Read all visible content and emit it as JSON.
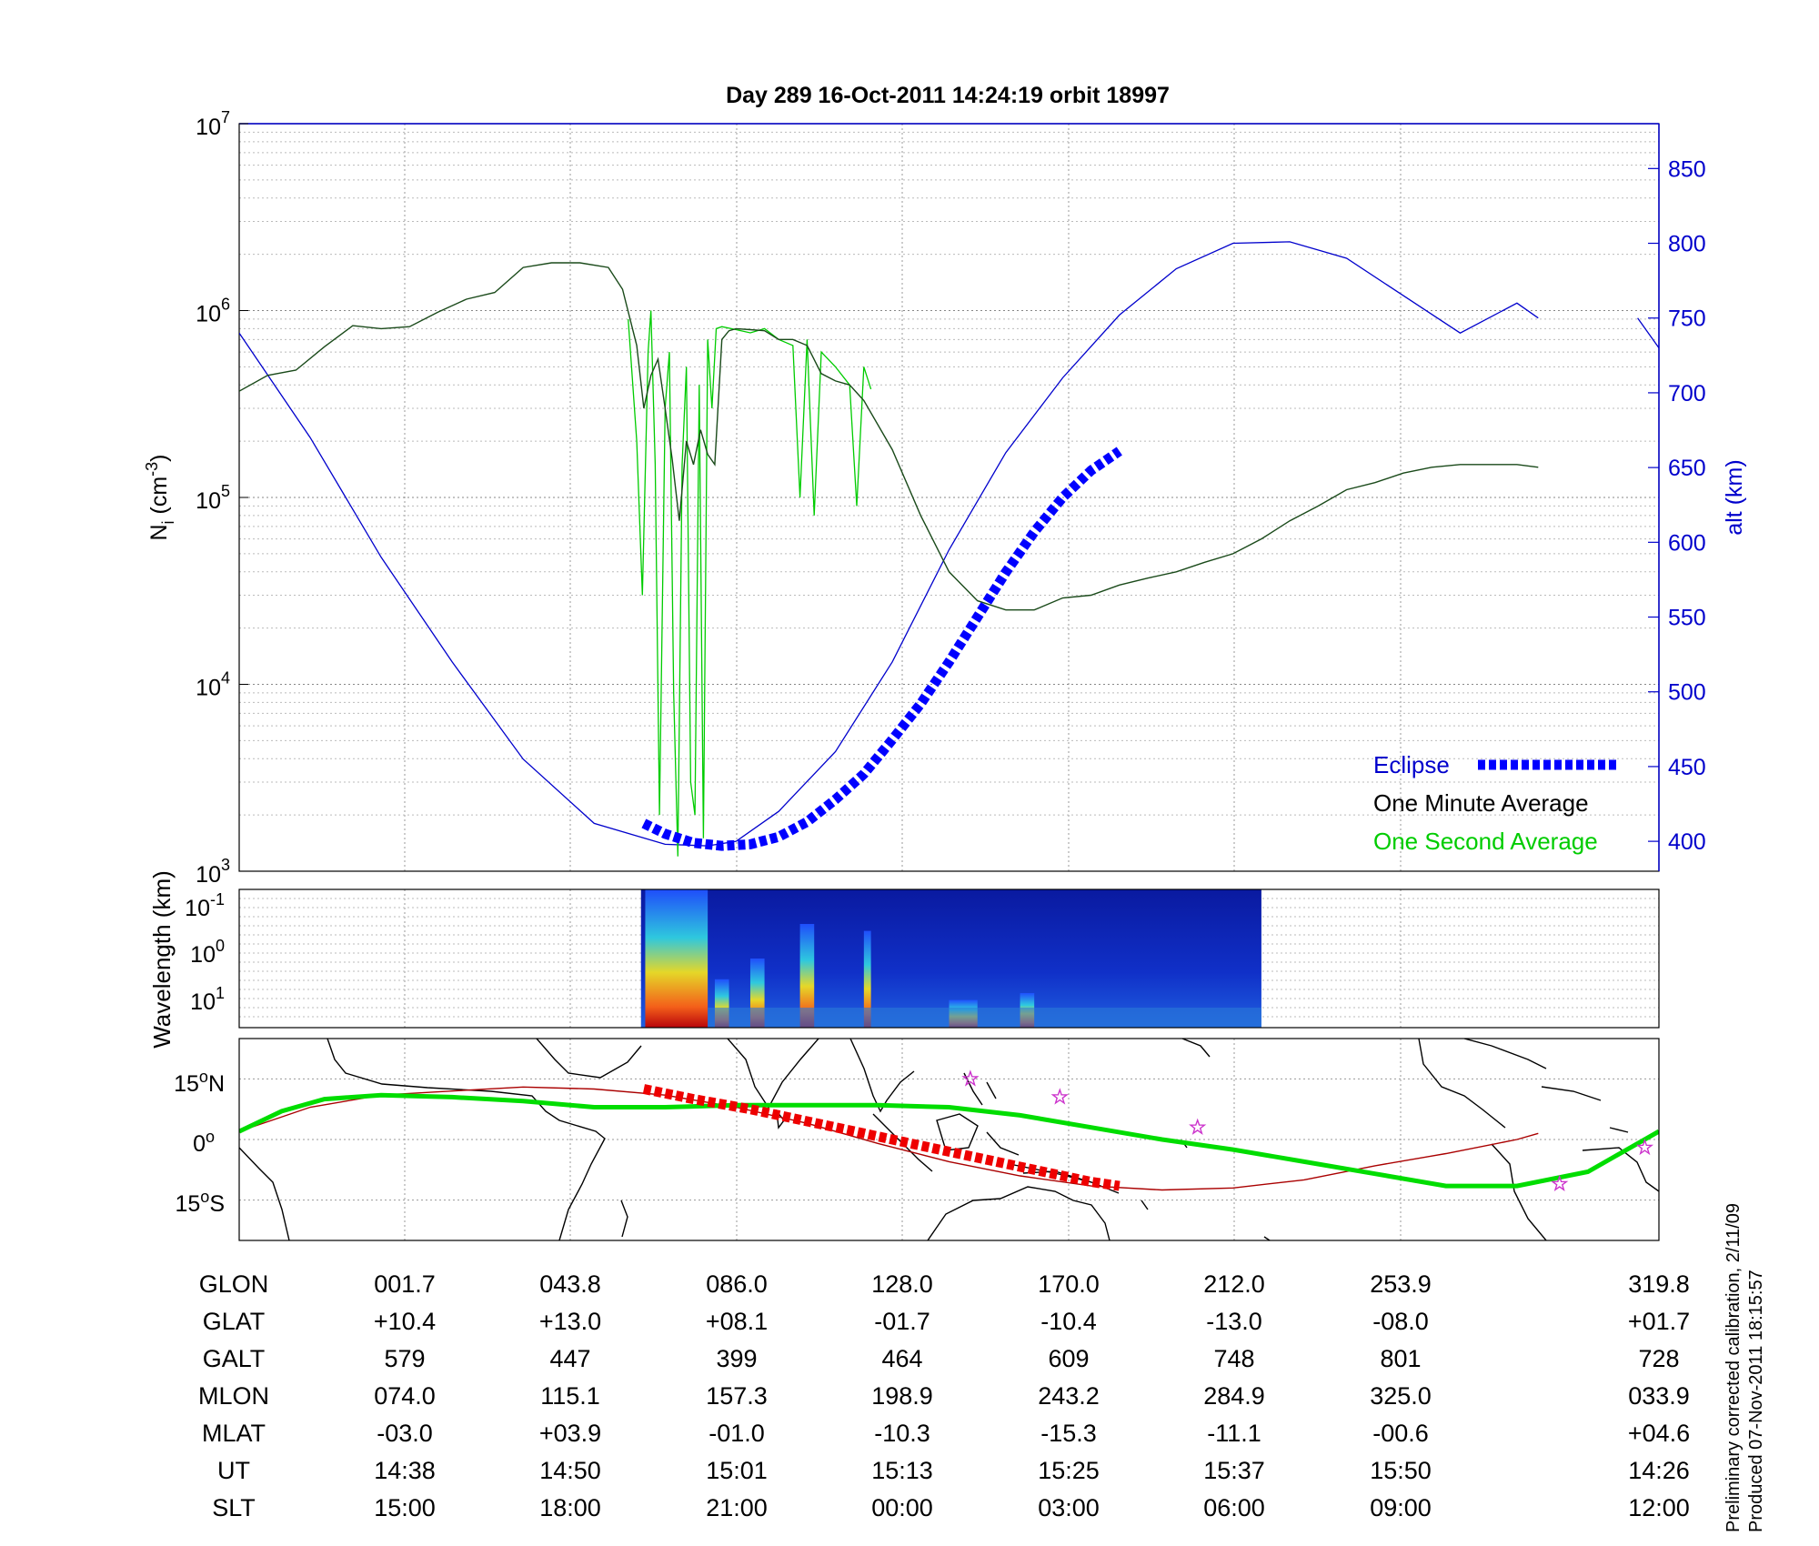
{
  "title": "Day 289  16-Oct-2011 14:24:19   orbit 18997",
  "colors": {
    "one_minute": "#000000",
    "one_second": "#00cc00",
    "altitude": "#0000cc",
    "eclipse": "#0000ff",
    "ground_track": "#00dd00",
    "eclipse_track": "#ee0000",
    "magnetic_equator": "#aa0000",
    "stars": "#cc33cc"
  },
  "chart_data": [
    {
      "type": "line",
      "panel": "ion-density",
      "y_left_label": "N",
      "y_left_label_sub": "i",
      "y_left_unit": "(cm",
      "y_left_unit_sup": "-3",
      "y_left_unit_close": ")",
      "y_left_scale": "log",
      "y_left_ticks": [
        {
          "base": "10",
          "exp": "3"
        },
        {
          "base": "10",
          "exp": "4"
        },
        {
          "base": "10",
          "exp": "5"
        },
        {
          "base": "10",
          "exp": "6"
        },
        {
          "base": "10",
          "exp": "7"
        }
      ],
      "y_left_range": [
        1000,
        10000000
      ],
      "y_right_label": "alt (km)",
      "y_right_range": [
        380,
        880
      ],
      "y_right_ticks": [
        "400",
        "450",
        "500",
        "550",
        "600",
        "650",
        "700",
        "750",
        "800",
        "850"
      ],
      "x_range": [
        0,
        1
      ],
      "legend": [
        {
          "label": "Eclipse",
          "style": "eclipse"
        },
        {
          "label": "One Minute Average",
          "style": "one-minute"
        },
        {
          "label": "One Second Average",
          "style": "one-second"
        }
      ],
      "legend_position": "bottom-right",
      "series": [
        {
          "name": "One Minute Average",
          "x": [
            0,
            0.02,
            0.04,
            0.06,
            0.08,
            0.1,
            0.12,
            0.14,
            0.16,
            0.18,
            0.2,
            0.22,
            0.24,
            0.26,
            0.27,
            0.28,
            0.285,
            0.29,
            0.295,
            0.3,
            0.305,
            0.31,
            0.315,
            0.32,
            0.325,
            0.33,
            0.335,
            0.34,
            0.345,
            0.35,
            0.36,
            0.37,
            0.38,
            0.39,
            0.4,
            0.41,
            0.42,
            0.43,
            0.44,
            0.46,
            0.48,
            0.5,
            0.52,
            0.54,
            0.56,
            0.58,
            0.6,
            0.62,
            0.64,
            0.66,
            0.68,
            0.7,
            0.72,
            0.74,
            0.76,
            0.78,
            0.8,
            0.82,
            0.84,
            0.86,
            0.88,
            0.9,
            0.915
          ],
          "y": [
            370000,
            450000,
            480000,
            640000,
            830000,
            800000,
            820000,
            980000,
            1150000,
            1250000,
            1700000,
            1800000,
            1800000,
            1700000,
            1300000,
            650000,
            300000,
            450000,
            550000,
            300000,
            160000,
            75000,
            200000,
            150000,
            230000,
            170000,
            150000,
            700000,
            780000,
            800000,
            790000,
            780000,
            700000,
            700000,
            650000,
            460000,
            420000,
            400000,
            330000,
            180000,
            80000,
            40000,
            28000,
            25000,
            25000,
            29000,
            30000,
            34000,
            37000,
            40000,
            45000,
            50000,
            60000,
            75000,
            90000,
            110000,
            120000,
            135000,
            145000,
            150000,
            150000,
            150000,
            145000
          ]
        },
        {
          "name": "One Second Average",
          "x": [
            0.274,
            0.28,
            0.284,
            0.288,
            0.29,
            0.293,
            0.296,
            0.3,
            0.303,
            0.306,
            0.309,
            0.312,
            0.315,
            0.318,
            0.321,
            0.324,
            0.327,
            0.33,
            0.333,
            0.336,
            0.34,
            0.35,
            0.36,
            0.37,
            0.38,
            0.39,
            0.395,
            0.4,
            0.405,
            0.41,
            0.42,
            0.43,
            0.435,
            0.44,
            0.445
          ],
          "y": [
            900000,
            200000,
            30000,
            600000,
            1000000,
            150000,
            2000,
            300000,
            600000,
            9000,
            1200,
            150000,
            500000,
            3000,
            2000,
            400000,
            1500,
            700000,
            300000,
            800000,
            820000,
            790000,
            760000,
            800000,
            700000,
            650000,
            100000,
            700000,
            80000,
            600000,
            500000,
            400000,
            90000,
            500000,
            380000
          ]
        },
        {
          "name": "altitude",
          "axis": "right",
          "x": [
            0,
            0.05,
            0.1,
            0.15,
            0.2,
            0.25,
            0.3,
            0.33,
            0.35,
            0.38,
            0.42,
            0.46,
            0.5,
            0.54,
            0.58,
            0.62,
            0.66,
            0.7,
            0.74,
            0.78,
            0.82,
            0.86,
            0.9,
            0.915,
            0.985,
            1
          ],
          "y": [
            740,
            670,
            590,
            520,
            455,
            412,
            398,
            397,
            400,
            420,
            460,
            520,
            595,
            660,
            710,
            752,
            783,
            800,
            801,
            790,
            765,
            740,
            760,
            750,
            750,
            730
          ]
        },
        {
          "name": "Eclipse",
          "axis": "right",
          "x": [
            0.285,
            0.3,
            0.32,
            0.34,
            0.36,
            0.38,
            0.4,
            0.42,
            0.44,
            0.46,
            0.48,
            0.5,
            0.52,
            0.54,
            0.56,
            0.58,
            0.6,
            0.62
          ],
          "y": [
            412,
            405,
            399,
            397,
            398,
            403,
            413,
            428,
            445,
            468,
            492,
            520,
            550,
            580,
            607,
            630,
            648,
            661
          ]
        }
      ]
    },
    {
      "type": "heatmap",
      "panel": "wavelength-spectrogram",
      "ylabel": "Wavelength (km)",
      "y_ticks": [
        {
          "base": "10",
          "exp": "-1"
        },
        {
          "base": "10",
          "exp": "0"
        },
        {
          "base": "10",
          "exp": "1"
        }
      ],
      "data_x_range": [
        0.283,
        0.72
      ]
    },
    {
      "type": "line",
      "panel": "ground-track-map",
      "y_ticks": [
        {
          "value": "15",
          "unit": "o",
          "hemi": "N"
        },
        {
          "value": "0",
          "unit": "o",
          "hemi": ""
        },
        {
          "value": "15",
          "unit": "o",
          "hemi": "S"
        }
      ],
      "y_range": [
        -25,
        25
      ],
      "series": [
        {
          "name": "ground track",
          "x": [
            0,
            0.03,
            0.06,
            0.1,
            0.15,
            0.2,
            0.25,
            0.3,
            0.35,
            0.4,
            0.45,
            0.5,
            0.55,
            0.6,
            0.65,
            0.7,
            0.75,
            0.8,
            0.85,
            0.9,
            0.95,
            1
          ],
          "y": [
            2,
            7,
            10,
            11,
            10.5,
            9.5,
            8,
            8,
            8.5,
            8.5,
            8.5,
            8,
            6,
            3,
            0,
            -2.5,
            -5.5,
            -8.5,
            -11.5,
            -11.5,
            -8,
            2
          ]
        },
        {
          "name": "magnetic equator",
          "x": [
            0,
            0.05,
            0.1,
            0.15,
            0.2,
            0.25,
            0.3,
            0.35,
            0.4,
            0.45,
            0.5,
            0.55,
            0.6,
            0.65,
            0.7,
            0.75,
            0.8,
            0.85,
            0.9,
            0.915
          ],
          "y": [
            2,
            8,
            11,
            12,
            13,
            12.5,
            11,
            8,
            4,
            -1,
            -5.5,
            -9,
            -11.5,
            -12.5,
            -12,
            -10,
            -6.5,
            -3.5,
            0,
            1.5
          ]
        },
        {
          "name": "eclipse track",
          "x": [
            0.285,
            0.32,
            0.36,
            0.4,
            0.44,
            0.48,
            0.52,
            0.56,
            0.6,
            0.62
          ],
          "y": [
            12.5,
            10,
            7.5,
            4.5,
            1.5,
            -1.5,
            -4.5,
            -7.5,
            -10.5,
            -11.5
          ]
        },
        {
          "name": "stars",
          "x": [
            0.515,
            0.578,
            0.675,
            0.93,
            0.99
          ],
          "y": [
            15,
            10.5,
            3,
            -11,
            -2
          ]
        }
      ]
    }
  ],
  "table": {
    "row_labels": [
      "GLON",
      "GLAT",
      "GALT",
      "MLON",
      "MLAT",
      "UT",
      "SLT"
    ],
    "columns": [
      [
        "001.7",
        "+10.4",
        "579",
        "074.0",
        "-03.0",
        "14:38",
        "15:00"
      ],
      [
        "043.8",
        "+13.0",
        "447",
        "115.1",
        "+03.9",
        "14:50",
        "18:00"
      ],
      [
        "086.0",
        "+08.1",
        "399",
        "157.3",
        "-01.0",
        "15:01",
        "21:00"
      ],
      [
        "128.0",
        "-01.7",
        "464",
        "198.9",
        "-10.3",
        "15:13",
        "00:00"
      ],
      [
        "170.0",
        "-10.4",
        "609",
        "243.2",
        "-15.3",
        "15:25",
        "03:00"
      ],
      [
        "212.0",
        "-13.0",
        "748",
        "284.9",
        "-11.1",
        "15:37",
        "06:00"
      ],
      [
        "253.9",
        "-08.0",
        "801",
        "325.0",
        "-00.6",
        "15:50",
        "09:00"
      ],
      [
        "319.8",
        "+01.7",
        "728",
        "033.9",
        "+04.6",
        "14:26",
        "12:00"
      ]
    ]
  },
  "footnote": {
    "line1": "Preliminary corrected calibration, 2/11/09",
    "line2": "Produced 07-Nov-2011 18:15:57"
  }
}
